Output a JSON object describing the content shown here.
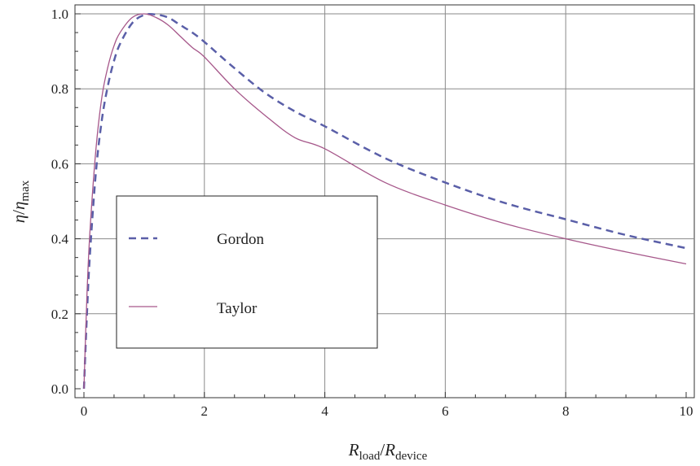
{
  "chart_data": {
    "type": "line",
    "xlabel": {
      "main": "R",
      "sub1": "load",
      "slash": "/",
      "main2": "R",
      "sub2": "device"
    },
    "ylabel": {
      "eta1": "η",
      "slash": "/",
      "eta2": "η",
      "sub": "max"
    },
    "xlim": [
      0,
      10
    ],
    "ylim": [
      0,
      1
    ],
    "xticks": [
      0,
      2,
      4,
      6,
      8,
      10
    ],
    "xtick_labels": [
      "0",
      "2",
      "4",
      "6",
      "8",
      "10"
    ],
    "yticks": [
      0,
      0.2,
      0.4,
      0.6,
      0.8,
      1.0
    ],
    "ytick_labels": [
      "0.0",
      "0.2",
      "0.4",
      "0.6",
      "0.8",
      "1.0"
    ],
    "grid": true,
    "legend_position": "center-left",
    "series": [
      {
        "name": "Gordon",
        "style": "dashed",
        "color": "#5a5fa8",
        "x": [
          0,
          0.05,
          0.1,
          0.2,
          0.3,
          0.4,
          0.5,
          0.6,
          0.8,
          1.0,
          1.2,
          1.4,
          1.6,
          1.8,
          2.0,
          2.5,
          3.0,
          3.5,
          4.0,
          5.0,
          6.0,
          7.0,
          8.0,
          9.0,
          10.0
        ],
        "y": [
          0,
          0.2,
          0.36,
          0.58,
          0.72,
          0.81,
          0.875,
          0.92,
          0.975,
          0.997,
          0.998,
          0.99,
          0.97,
          0.95,
          0.925,
          0.855,
          0.79,
          0.74,
          0.7,
          0.615,
          0.55,
          0.495,
          0.452,
          0.41,
          0.375
        ]
      },
      {
        "name": "Taylor",
        "style": "solid",
        "color": "#a6578a",
        "x": [
          0,
          0.05,
          0.1,
          0.2,
          0.3,
          0.4,
          0.5,
          0.6,
          0.8,
          1.0,
          1.2,
          1.4,
          1.6,
          1.8,
          2.0,
          2.5,
          3.0,
          3.5,
          4.0,
          5.0,
          6.0,
          7.0,
          8.0,
          9.0,
          10.0
        ],
        "y": [
          0,
          0.25,
          0.42,
          0.64,
          0.78,
          0.86,
          0.915,
          0.95,
          0.99,
          1.0,
          0.99,
          0.97,
          0.94,
          0.91,
          0.885,
          0.8,
          0.73,
          0.67,
          0.64,
          0.55,
          0.49,
          0.44,
          0.4,
          0.365,
          0.333
        ]
      }
    ]
  }
}
